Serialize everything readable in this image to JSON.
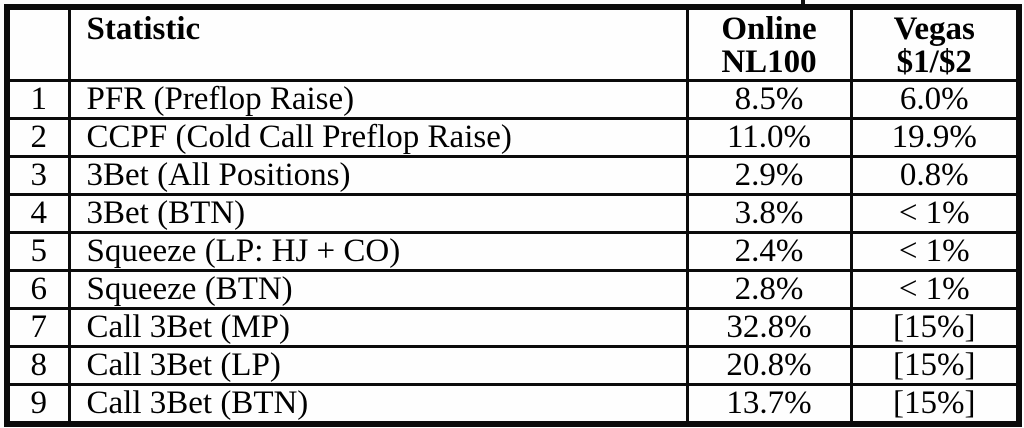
{
  "colors": {
    "border": "#0b0b0b",
    "text": "#000000",
    "background": "#fdfdfd"
  },
  "table": {
    "headers": {
      "num": "",
      "statistic": "Statistic",
      "online": {
        "line1": "Online",
        "line2": "NL100"
      },
      "vegas": {
        "line1": "Vegas",
        "line2": "$1/$2"
      }
    },
    "rows": [
      {
        "num": "1",
        "statistic": "PFR (Preflop Raise)",
        "online": "8.5%",
        "vegas": "6.0%"
      },
      {
        "num": "2",
        "statistic": "CCPF (Cold Call Preflop Raise)",
        "online": "11.0%",
        "vegas": "19.9%"
      },
      {
        "num": "3",
        "statistic": "3Bet (All Positions)",
        "online": "2.9%",
        "vegas": "0.8%"
      },
      {
        "num": "4",
        "statistic": "3Bet (BTN)",
        "online": "3.8%",
        "vegas": "< 1%"
      },
      {
        "num": "5",
        "statistic": "Squeeze (LP: HJ + CO)",
        "online": "2.4%",
        "vegas": "< 1%"
      },
      {
        "num": "6",
        "statistic": "Squeeze (BTN)",
        "online": "2.8%",
        "vegas": "< 1%"
      },
      {
        "num": "7",
        "statistic": "Call 3Bet (MP)",
        "online": "32.8%",
        "vegas": "[15%]"
      },
      {
        "num": "8",
        "statistic": "Call 3Bet (LP)",
        "online": "20.8%",
        "vegas": "[15%]"
      },
      {
        "num": "9",
        "statistic": "Call 3Bet (BTN)",
        "online": "13.7%",
        "vegas": "[15%]"
      }
    ]
  }
}
